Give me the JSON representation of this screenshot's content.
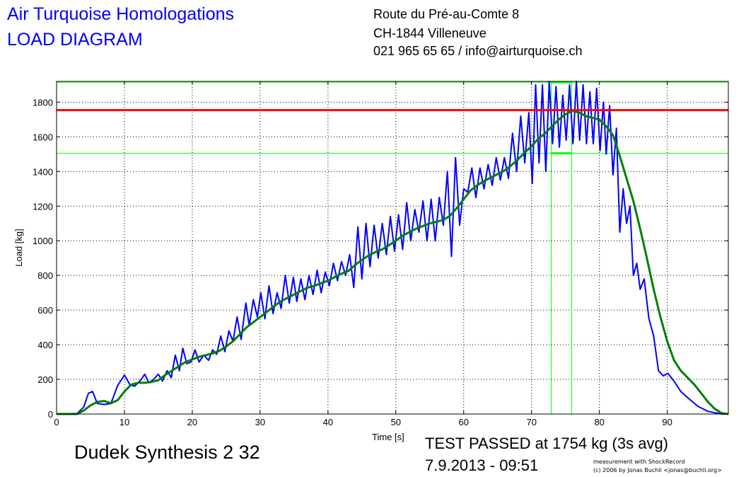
{
  "header": {
    "title_line1": "Air Turquoise Homologations",
    "title_line2": "LOAD DIAGRAM",
    "address_line1": "Route du Pré-au-Comte 8",
    "address_line2": "CH-1844 Villeneuve",
    "address_line3": "021 965 65 65 / info@airturquoise.ch"
  },
  "footer": {
    "sample_name": "Dudek Synthesis 2 32",
    "result": "TEST PASSED at 1754 kg (3s avg)",
    "datetime": "7.9.2013 - 09:51",
    "credit_line1": "measurement with ShockRecord",
    "credit_line2": "(c) 2006 by Jonas Buchli <jonas@buchli.org>"
  },
  "colors": {
    "raw_load": "#0000ff",
    "avg_load": "#007f00",
    "limit_line": "#ff0000",
    "window_markers": "#00ff00"
  },
  "chart_data": {
    "type": "line",
    "xlabel": "Time [s]",
    "ylabel": "Load [kg]",
    "xlim": [
      0,
      99
    ],
    "ylim": [
      0,
      1920
    ],
    "x_ticks": [
      0,
      10,
      20,
      30,
      40,
      50,
      60,
      70,
      80,
      90
    ],
    "y_ticks": [
      0,
      200,
      400,
      600,
      800,
      1000,
      1200,
      1400,
      1600,
      1800
    ],
    "grid": true,
    "limit_line_y": 1754,
    "window": {
      "x_start": 72.9,
      "x_end": 75.9,
      "y_low": 1505,
      "y_high": 1915
    },
    "series": [
      {
        "key": "raw",
        "points": [
          [
            0,
            0
          ],
          [
            3,
            3
          ],
          [
            4,
            40
          ],
          [
            4.7,
            120
          ],
          [
            5.3,
            130
          ],
          [
            6,
            60
          ],
          [
            7,
            55
          ],
          [
            8,
            60
          ],
          [
            9,
            165
          ],
          [
            10,
            225
          ],
          [
            10.8,
            170
          ],
          [
            11.5,
            160
          ],
          [
            12.5,
            200
          ],
          [
            13,
            230
          ],
          [
            13.6,
            180
          ],
          [
            14.3,
            200
          ],
          [
            15,
            230
          ],
          [
            15.6,
            190
          ],
          [
            16.3,
            250
          ],
          [
            16.9,
            210
          ],
          [
            17.5,
            340
          ],
          [
            18.1,
            250
          ],
          [
            18.6,
            380
          ],
          [
            19.2,
            290
          ],
          [
            19.8,
            300
          ],
          [
            20.4,
            370
          ],
          [
            21,
            300
          ],
          [
            21.7,
            340
          ],
          [
            22.4,
            310
          ],
          [
            23,
            370
          ],
          [
            23.6,
            345
          ],
          [
            24.2,
            450
          ],
          [
            24.8,
            360
          ],
          [
            25.4,
            480
          ],
          [
            26,
            420
          ],
          [
            26.6,
            560
          ],
          [
            27.2,
            430
          ],
          [
            27.9,
            640
          ],
          [
            28.4,
            510
          ],
          [
            29,
            660
          ],
          [
            29.6,
            560
          ],
          [
            30.1,
            700
          ],
          [
            30.7,
            550
          ],
          [
            31.3,
            740
          ],
          [
            31.9,
            580
          ],
          [
            32.5,
            700
          ],
          [
            33.1,
            610
          ],
          [
            33.7,
            800
          ],
          [
            34.3,
            640
          ],
          [
            34.9,
            790
          ],
          [
            35.4,
            650
          ],
          [
            36,
            780
          ],
          [
            36.6,
            660
          ],
          [
            37.2,
            800
          ],
          [
            37.8,
            690
          ],
          [
            38.4,
            830
          ],
          [
            39,
            700
          ],
          [
            39.6,
            820
          ],
          [
            40.2,
            740
          ],
          [
            40.8,
            870
          ],
          [
            41.4,
            770
          ],
          [
            42,
            880
          ],
          [
            42.6,
            800
          ],
          [
            43.2,
            920
          ],
          [
            43.8,
            730
          ],
          [
            44.4,
            1080
          ],
          [
            45,
            780
          ],
          [
            45.6,
            1100
          ],
          [
            46.2,
            850
          ],
          [
            46.8,
            1090
          ],
          [
            47.4,
            900
          ],
          [
            48,
            1100
          ],
          [
            48.6,
            920
          ],
          [
            49.2,
            1140
          ],
          [
            49.8,
            940
          ],
          [
            50.4,
            1150
          ],
          [
            51,
            950
          ],
          [
            51.6,
            1220
          ],
          [
            52.2,
            1000
          ],
          [
            52.8,
            1180
          ],
          [
            53.4,
            1050
          ],
          [
            54,
            1230
          ],
          [
            54.6,
            1000
          ],
          [
            55.2,
            1240
          ],
          [
            55.8,
            1000
          ],
          [
            56.4,
            1250
          ],
          [
            57,
            1090
          ],
          [
            57.6,
            1400
          ],
          [
            58.2,
            910
          ],
          [
            58.8,
            1480
          ],
          [
            59.4,
            1090
          ],
          [
            60,
            1300
          ],
          [
            60.6,
            1280
          ],
          [
            61.2,
            1420
          ],
          [
            61.8,
            1250
          ],
          [
            62.4,
            1420
          ],
          [
            63,
            1300
          ],
          [
            63.6,
            1440
          ],
          [
            64.2,
            1320
          ],
          [
            64.8,
            1480
          ],
          [
            65.4,
            1350
          ],
          [
            66,
            1480
          ],
          [
            66.6,
            1360
          ],
          [
            67.2,
            1620
          ],
          [
            67.8,
            1400
          ],
          [
            68.4,
            1720
          ],
          [
            69,
            1450
          ],
          [
            69.6,
            1740
          ],
          [
            70.1,
            1330
          ],
          [
            70.6,
            1900
          ],
          [
            71.1,
            1450
          ],
          [
            71.6,
            1900
          ],
          [
            72.1,
            1400
          ],
          [
            72.6,
            1920
          ],
          [
            73.1,
            1560
          ],
          [
            73.6,
            1890
          ],
          [
            74.1,
            1540
          ],
          [
            74.6,
            1840
          ],
          [
            75.1,
            1580
          ],
          [
            75.6,
            1900
          ],
          [
            76.1,
            1560
          ],
          [
            76.6,
            1920
          ],
          [
            77.1,
            1580
          ],
          [
            77.6,
            1900
          ],
          [
            78.1,
            1560
          ],
          [
            78.6,
            1860
          ],
          [
            79.1,
            1560
          ],
          [
            79.6,
            1880
          ],
          [
            80.1,
            1520
          ],
          [
            80.6,
            1800
          ],
          [
            81,
            1500
          ],
          [
            81.5,
            1780
          ],
          [
            82,
            1380
          ],
          [
            82.5,
            1650
          ],
          [
            83,
            1050
          ],
          [
            83.5,
            1300
          ],
          [
            84,
            1100
          ],
          [
            84.5,
            1200
          ],
          [
            85,
            800
          ],
          [
            85.5,
            870
          ],
          [
            86,
            720
          ],
          [
            86.6,
            780
          ],
          [
            87.3,
            550
          ],
          [
            88,
            450
          ],
          [
            88.7,
            250
          ],
          [
            89.4,
            220
          ],
          [
            90.1,
            235
          ],
          [
            91,
            190
          ],
          [
            92,
            130
          ],
          [
            93,
            95
          ],
          [
            94.5,
            45
          ],
          [
            96,
            15
          ],
          [
            98,
            0
          ],
          [
            99,
            0
          ]
        ]
      },
      {
        "key": "avg",
        "points": [
          [
            0,
            0
          ],
          [
            3,
            0
          ],
          [
            4,
            20
          ],
          [
            5,
            50
          ],
          [
            6,
            70
          ],
          [
            7,
            75
          ],
          [
            8,
            62
          ],
          [
            9,
            80
          ],
          [
            10,
            130
          ],
          [
            11,
            170
          ],
          [
            12,
            180
          ],
          [
            13,
            180
          ],
          [
            14,
            185
          ],
          [
            15,
            195
          ],
          [
            16,
            225
          ],
          [
            17,
            250
          ],
          [
            18,
            275
          ],
          [
            19,
            300
          ],
          [
            20,
            315
          ],
          [
            21,
            330
          ],
          [
            22,
            340
          ],
          [
            23,
            350
          ],
          [
            24,
            365
          ],
          [
            25,
            390
          ],
          [
            26,
            420
          ],
          [
            27,
            460
          ],
          [
            28,
            500
          ],
          [
            29,
            530
          ],
          [
            30,
            560
          ],
          [
            31,
            590
          ],
          [
            32,
            620
          ],
          [
            33,
            650
          ],
          [
            34,
            670
          ],
          [
            35,
            690
          ],
          [
            36,
            710
          ],
          [
            37,
            730
          ],
          [
            38,
            740
          ],
          [
            39,
            755
          ],
          [
            40,
            770
          ],
          [
            41,
            790
          ],
          [
            42,
            810
          ],
          [
            43,
            825
          ],
          [
            44,
            860
          ],
          [
            45,
            890
          ],
          [
            46,
            915
          ],
          [
            47,
            935
          ],
          [
            48,
            950
          ],
          [
            49,
            975
          ],
          [
            50,
            1000
          ],
          [
            51,
            1030
          ],
          [
            52,
            1050
          ],
          [
            53,
            1070
          ],
          [
            54,
            1085
          ],
          [
            55,
            1100
          ],
          [
            56,
            1110
          ],
          [
            57,
            1120
          ],
          [
            58,
            1145
          ],
          [
            59,
            1190
          ],
          [
            60,
            1240
          ],
          [
            61,
            1290
          ],
          [
            62,
            1320
          ],
          [
            63,
            1345
          ],
          [
            64,
            1365
          ],
          [
            65,
            1385
          ],
          [
            66,
            1405
          ],
          [
            67,
            1435
          ],
          [
            68,
            1470
          ],
          [
            69,
            1510
          ],
          [
            70,
            1545
          ],
          [
            71,
            1590
          ],
          [
            72,
            1620
          ],
          [
            73,
            1660
          ],
          [
            74,
            1700
          ],
          [
            75,
            1730
          ],
          [
            76,
            1750
          ],
          [
            77,
            1740
          ],
          [
            78,
            1720
          ],
          [
            79,
            1710
          ],
          [
            80,
            1700
          ],
          [
            81,
            1660
          ],
          [
            82,
            1610
          ],
          [
            83,
            1490
          ],
          [
            84,
            1360
          ],
          [
            85,
            1230
          ],
          [
            86,
            1070
          ],
          [
            87,
            900
          ],
          [
            88,
            720
          ],
          [
            89,
            560
          ],
          [
            90,
            420
          ],
          [
            91,
            310
          ],
          [
            92,
            250
          ],
          [
            93,
            210
          ],
          [
            94,
            170
          ],
          [
            95,
            120
          ],
          [
            96,
            70
          ],
          [
            97,
            30
          ],
          [
            98,
            5
          ],
          [
            99,
            0
          ]
        ]
      }
    ]
  }
}
